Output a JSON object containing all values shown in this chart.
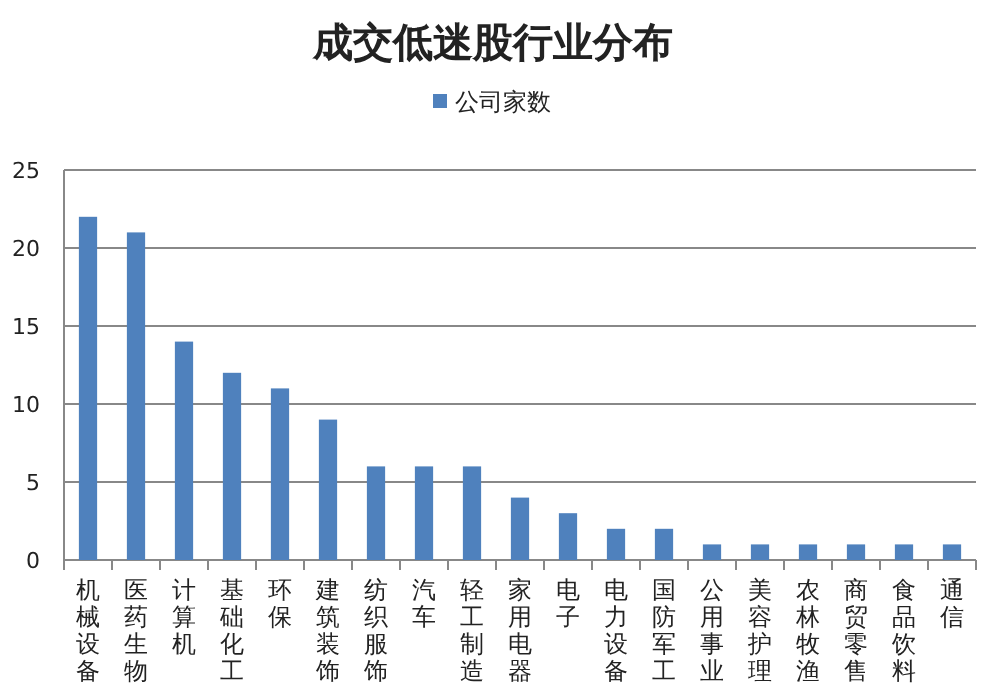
{
  "chart_data": {
    "type": "bar",
    "title": "成交低迷股行业分布",
    "categories": [
      "机械设备",
      "医药生物",
      "计算机",
      "基础化工",
      "环保",
      "建筑装饰",
      "纺织服饰",
      "汽车",
      "轻工制造",
      "家用电器",
      "电子",
      "电力设备",
      "国防军工",
      "公用事业",
      "美容护理",
      "农林牧渔",
      "商贸零售",
      "食品饮料",
      "通信"
    ],
    "series": [
      {
        "name": "公司家数",
        "color": "#4f81bd",
        "values": [
          22,
          21,
          14,
          12,
          11,
          9,
          6,
          6,
          6,
          4,
          3,
          2,
          2,
          1,
          1,
          1,
          1,
          1,
          1
        ]
      }
    ],
    "ylim": [
      0,
      25
    ],
    "yticks": [
      0,
      5,
      10,
      15,
      20,
      25
    ],
    "grid": "y",
    "legend": "top"
  }
}
